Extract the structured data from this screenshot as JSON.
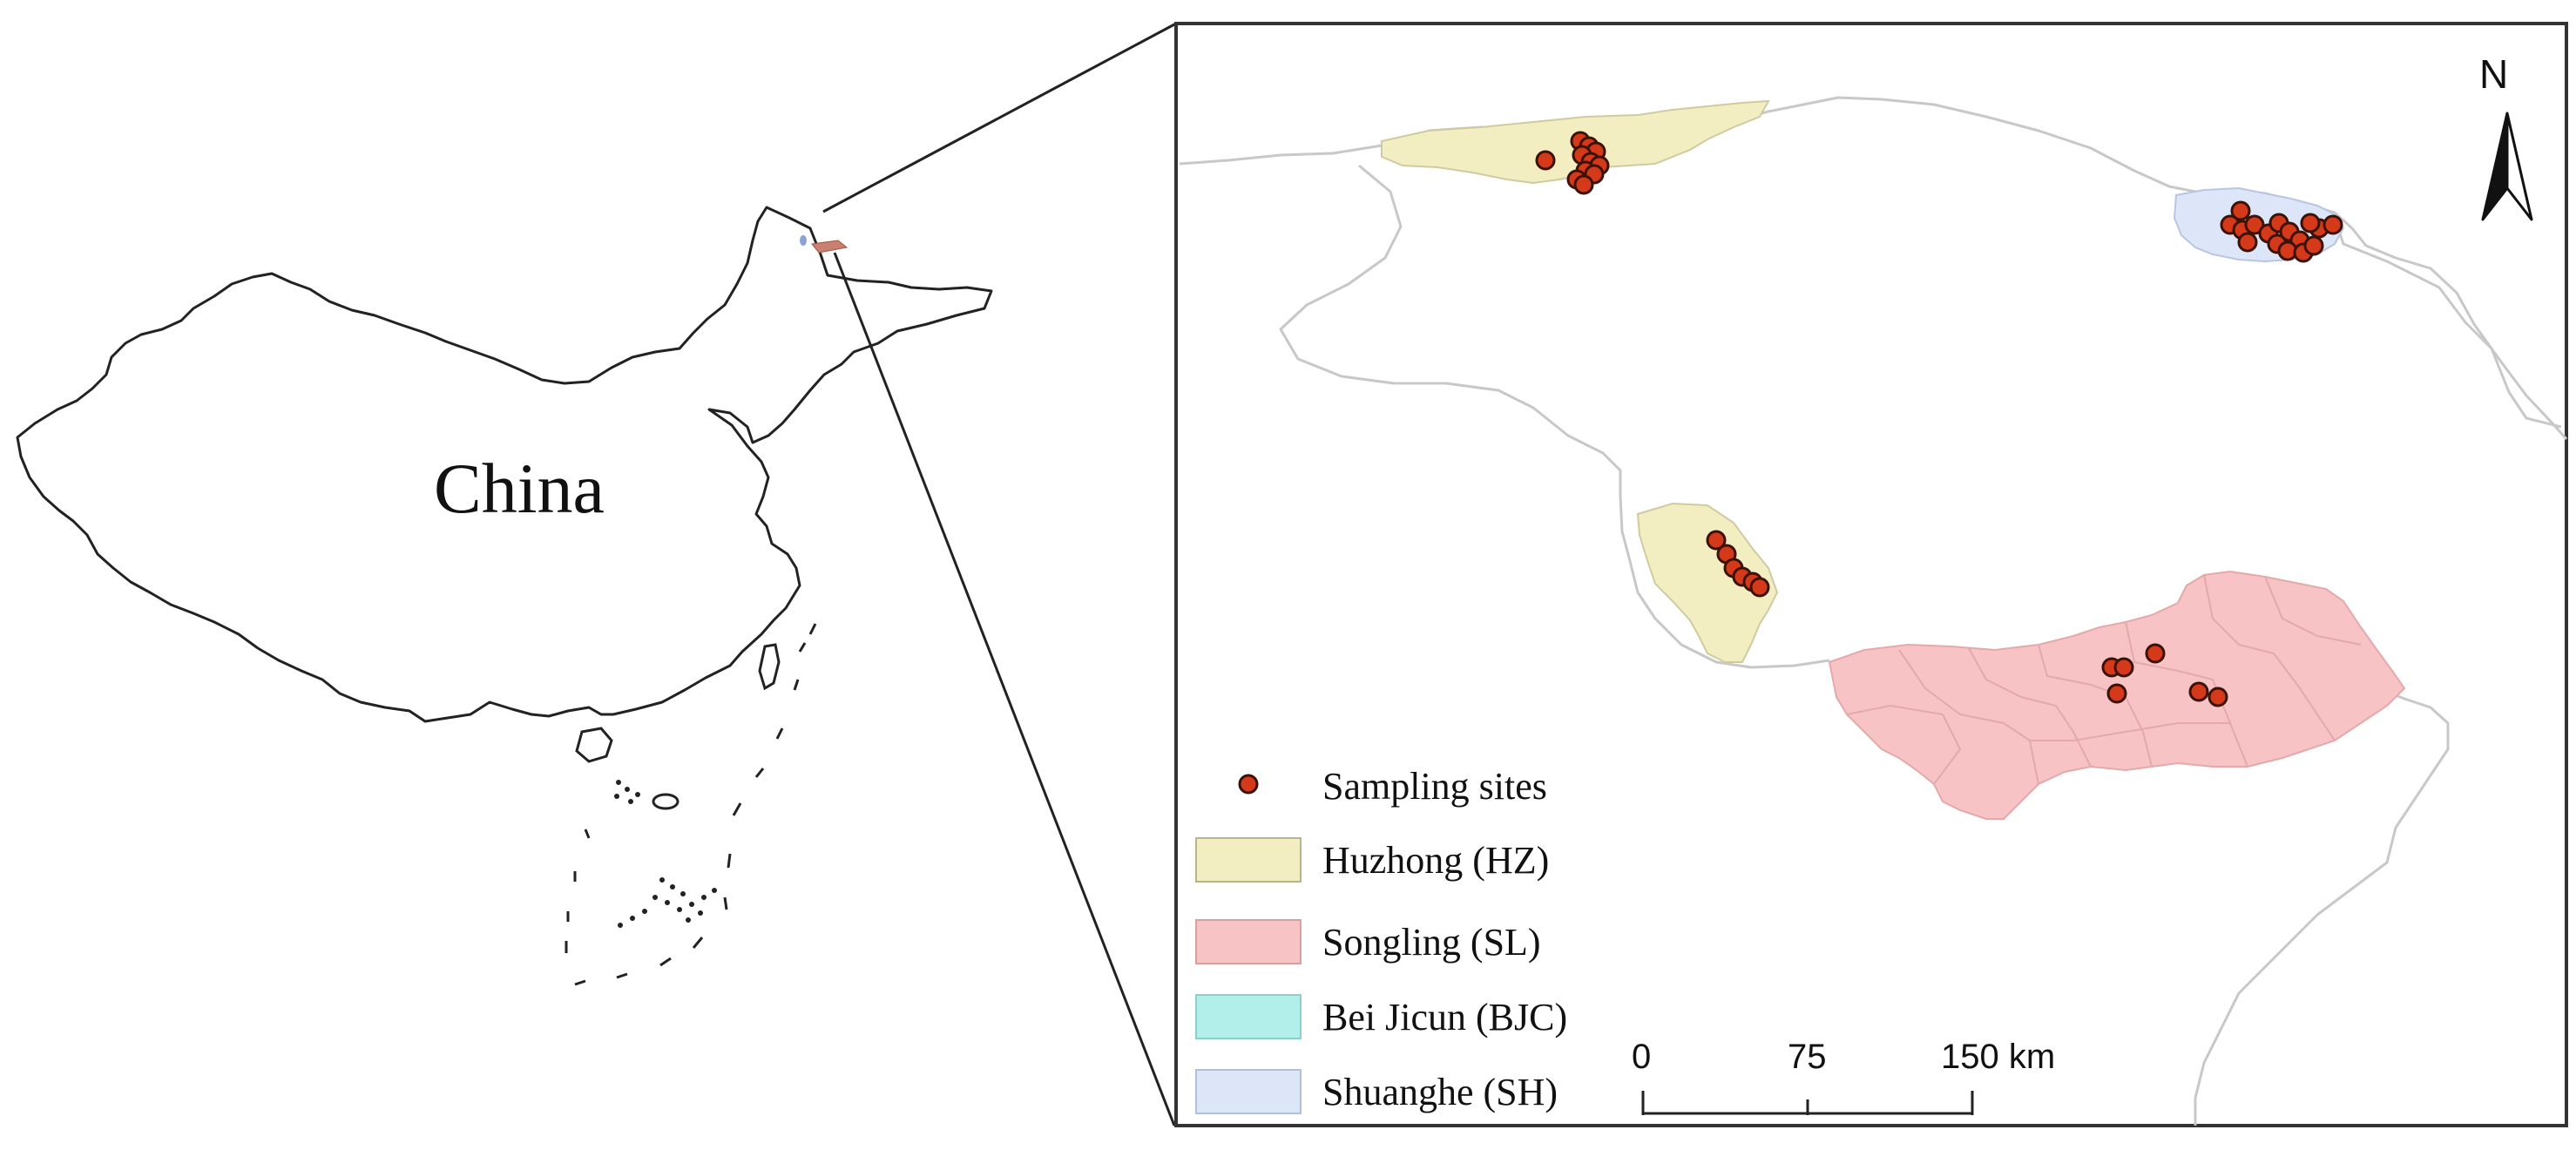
{
  "overview": {
    "country_label": "China",
    "colors": {
      "outline": "#222222",
      "inset_box": "#222222"
    }
  },
  "detail_map": {
    "north_arrow_label": "N",
    "colors": {
      "frame": "#333333",
      "boundary": "#c8c8c8",
      "huzhong": "#f3eec2",
      "songling": "#f7c3c4",
      "bei_jicun": "#b2eeea",
      "shuanghe": "#dce6f8",
      "site_fill": "#d43a1a",
      "site_stroke": "#3a1208"
    },
    "legend": {
      "items": [
        {
          "key": "sites",
          "label": "Sampling sites"
        },
        {
          "key": "huzhong",
          "label": "Huzhong (HZ)"
        },
        {
          "key": "songling",
          "label": "Songling (SL)"
        },
        {
          "key": "bei_jicun",
          "label": "Bei Jicun (BJC)"
        },
        {
          "key": "shuanghe",
          "label": "Shuanghe (SH)"
        }
      ]
    },
    "scale_bar": {
      "unit": "km",
      "ticks": [
        "0",
        "75",
        "150 km"
      ]
    }
  }
}
